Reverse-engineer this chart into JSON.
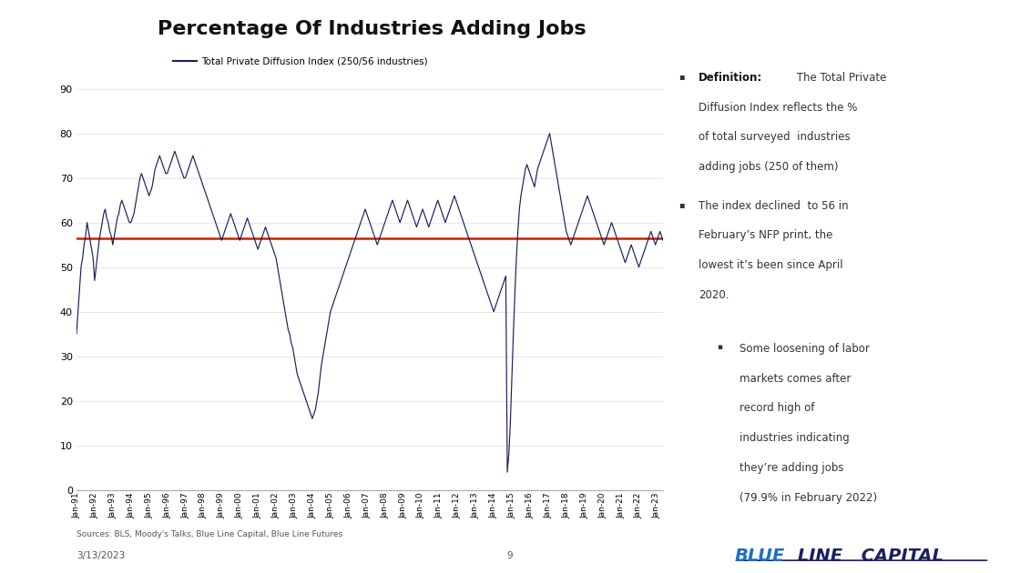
{
  "title": "Percentage Of Industries Adding Jobs",
  "legend_label": "Total Private Diffusion Index (250/56 industries)",
  "line_color": "#1B1F5E",
  "hline_color": "#CC2200",
  "hline_value": 56.5,
  "ylim": [
    0,
    90
  ],
  "yticks": [
    0,
    10,
    20,
    30,
    40,
    50,
    60,
    70,
    80,
    90
  ],
  "source_text": "Sources: BLS, Moody's Talks, Blue Line Capital, Blue Line Futures",
  "date_text": "3/13/2023",
  "page_number": "9",
  "background_color": "#ffffff",
  "x_labels": [
    "Jan-91",
    "Jan-92",
    "Jan-93",
    "Jan-94",
    "Jan-95",
    "Jan-96",
    "Jan-97",
    "Jan-98",
    "Jan-99",
    "Jan-00",
    "Jan-01",
    "Jan-02",
    "Jan-03",
    "Jan-04",
    "Jan-05",
    "Jan-06",
    "Jan-07",
    "Jan-08",
    "Jan-09",
    "Jan-10",
    "Jan-11",
    "Jan-12",
    "Jan-13",
    "Jan-14",
    "Jan-15",
    "Jan-16",
    "Jan-17",
    "Jan-18",
    "Jan-19",
    "Jan-20",
    "Jan-21",
    "Jan-22",
    "Jan-23"
  ],
  "monthly_data": [
    35,
    40,
    45,
    50,
    52,
    55,
    57,
    60,
    58,
    56,
    54,
    52,
    47,
    50,
    53,
    56,
    58,
    60,
    62,
    63,
    61,
    60,
    58,
    57,
    55,
    57,
    59,
    61,
    62,
    64,
    65,
    64,
    63,
    62,
    61,
    60,
    60,
    61,
    62,
    64,
    66,
    68,
    70,
    71,
    70,
    69,
    68,
    67,
    66,
    67,
    68,
    70,
    72,
    73,
    74,
    75,
    74,
    73,
    72,
    71,
    71,
    72,
    73,
    74,
    75,
    76,
    75,
    74,
    73,
    72,
    71,
    70,
    70,
    71,
    72,
    73,
    74,
    75,
    74,
    73,
    72,
    71,
    70,
    69,
    68,
    67,
    66,
    65,
    64,
    63,
    62,
    61,
    60,
    59,
    58,
    57,
    56,
    57,
    58,
    59,
    60,
    61,
    62,
    61,
    60,
    59,
    58,
    57,
    56,
    57,
    58,
    59,
    60,
    61,
    60,
    59,
    58,
    57,
    56,
    55,
    54,
    55,
    56,
    57,
    58,
    59,
    58,
    57,
    56,
    55,
    54,
    53,
    52,
    50,
    48,
    46,
    44,
    42,
    40,
    38,
    36,
    35,
    33,
    32,
    30,
    28,
    26,
    25,
    24,
    23,
    22,
    21,
    20,
    19,
    18,
    17,
    16,
    17,
    18,
    20,
    22,
    25,
    28,
    30,
    32,
    34,
    36,
    38,
    40,
    41,
    42,
    43,
    44,
    45,
    46,
    47,
    48,
    49,
    50,
    51,
    52,
    53,
    54,
    55,
    56,
    57,
    58,
    59,
    60,
    61,
    62,
    63,
    62,
    61,
    60,
    59,
    58,
    57,
    56,
    55,
    56,
    57,
    58,
    59,
    60,
    61,
    62,
    63,
    64,
    65,
    64,
    63,
    62,
    61,
    60,
    61,
    62,
    63,
    64,
    65,
    64,
    63,
    62,
    61,
    60,
    59,
    60,
    61,
    62,
    63,
    62,
    61,
    60,
    59,
    60,
    61,
    62,
    63,
    64,
    65,
    64,
    63,
    62,
    61,
    60,
    61,
    62,
    63,
    64,
    65,
    66,
    65,
    64,
    63,
    62,
    61,
    60,
    59,
    58,
    57,
    56,
    55,
    54,
    53,
    52,
    51,
    50,
    49,
    48,
    47,
    46,
    45,
    44,
    43,
    42,
    41,
    40,
    41,
    42,
    43,
    44,
    45,
    46,
    47,
    48,
    4,
    8,
    15,
    25,
    35,
    44,
    52,
    58,
    63,
    66,
    68,
    70,
    72,
    73,
    72,
    71,
    70,
    69,
    68,
    70,
    72,
    73,
    74,
    75,
    76,
    77,
    78,
    79,
    80,
    78,
    76,
    74,
    72,
    70,
    68,
    66,
    64,
    62,
    60,
    58,
    57,
    56,
    55,
    56,
    57,
    58,
    59,
    60,
    61,
    62,
    63,
    64,
    65,
    66,
    65,
    64,
    63,
    62,
    61,
    60,
    59,
    58,
    57,
    56,
    55,
    56,
    57,
    58,
    59,
    60,
    59,
    58,
    57,
    56,
    55,
    54,
    53,
    52,
    51,
    52,
    53,
    54,
    55,
    54,
    53,
    52,
    51,
    50,
    51,
    52,
    53,
    54,
    55,
    56,
    57,
    58,
    57,
    56,
    55,
    56,
    57,
    58,
    57,
    56
  ]
}
